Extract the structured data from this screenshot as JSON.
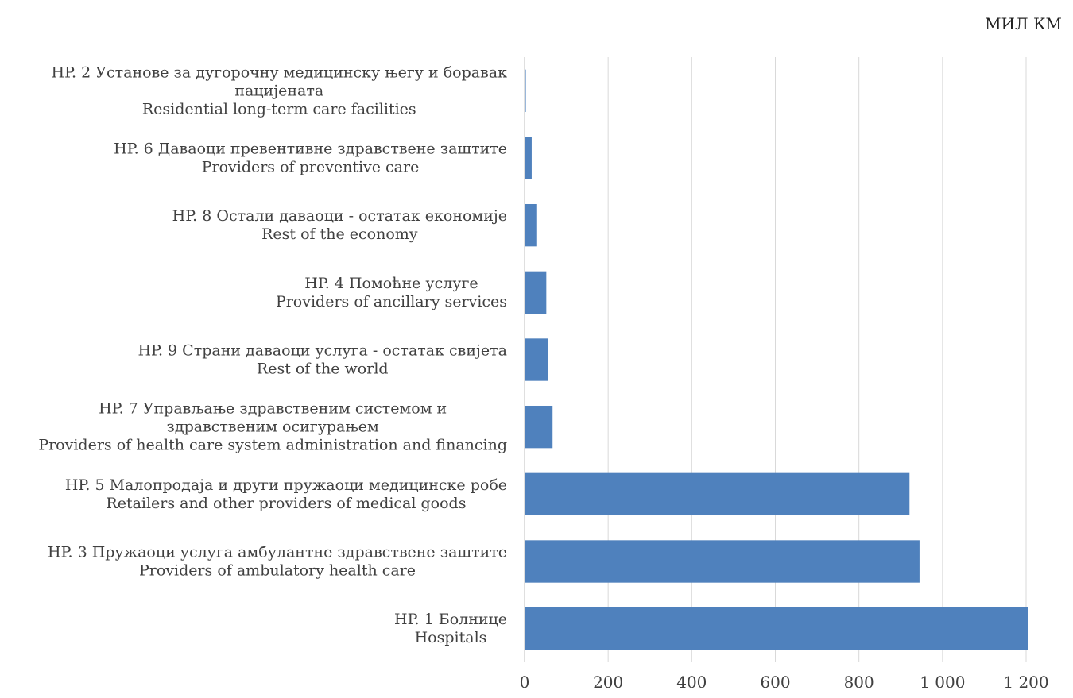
{
  "unit_label": "МИЛ КМ",
  "chart_data": {
    "type": "bar",
    "orientation": "horizontal",
    "categories": [
      [
        "HP. 2  Установе за дугорочну медицинску његу и боравак",
        "пацијената",
        "Residential long-term care facilities"
      ],
      [
        "HP. 6 Даваоци превентивне здравствене заштите",
        "Providers of preventive care"
      ],
      [
        "HP. 8 Остали даваоци - остатак економије",
        "Rest of the economy"
      ],
      [
        "HP. 4  Помоћне услуге",
        "Providers of ancillary services"
      ],
      [
        "HP. 9 Страни даваоци услуга - остатак свијета",
        "Rest of the world"
      ],
      [
        "HP. 7 Управљање здравственим системом и",
        "здравственим осигурањем",
        "Providers of health care system administration and financing"
      ],
      [
        "HP. 5 Малопродаја и други пружаоци медицинске робе",
        "Retailers and other providers of medical goods"
      ],
      [
        "HP. 3  Пружаоци услуга амбулантне здравствене заштите",
        "Providers of ambulatory health care"
      ],
      [
        "HP. 1  Болнице",
        "Hospitals"
      ]
    ],
    "values": [
      3,
      17,
      30,
      52,
      57,
      67,
      921,
      945,
      1205
    ],
    "xlim": [
      0,
      1200
    ],
    "xticks": [
      0,
      200,
      400,
      600,
      800,
      1000,
      1200
    ],
    "xtick_labels": [
      "0",
      "200",
      "400",
      "600",
      "800",
      "1 000",
      "1 200"
    ],
    "grid": true,
    "bar_color": "#4f81bd",
    "grid_color": "#d9d9d9"
  }
}
